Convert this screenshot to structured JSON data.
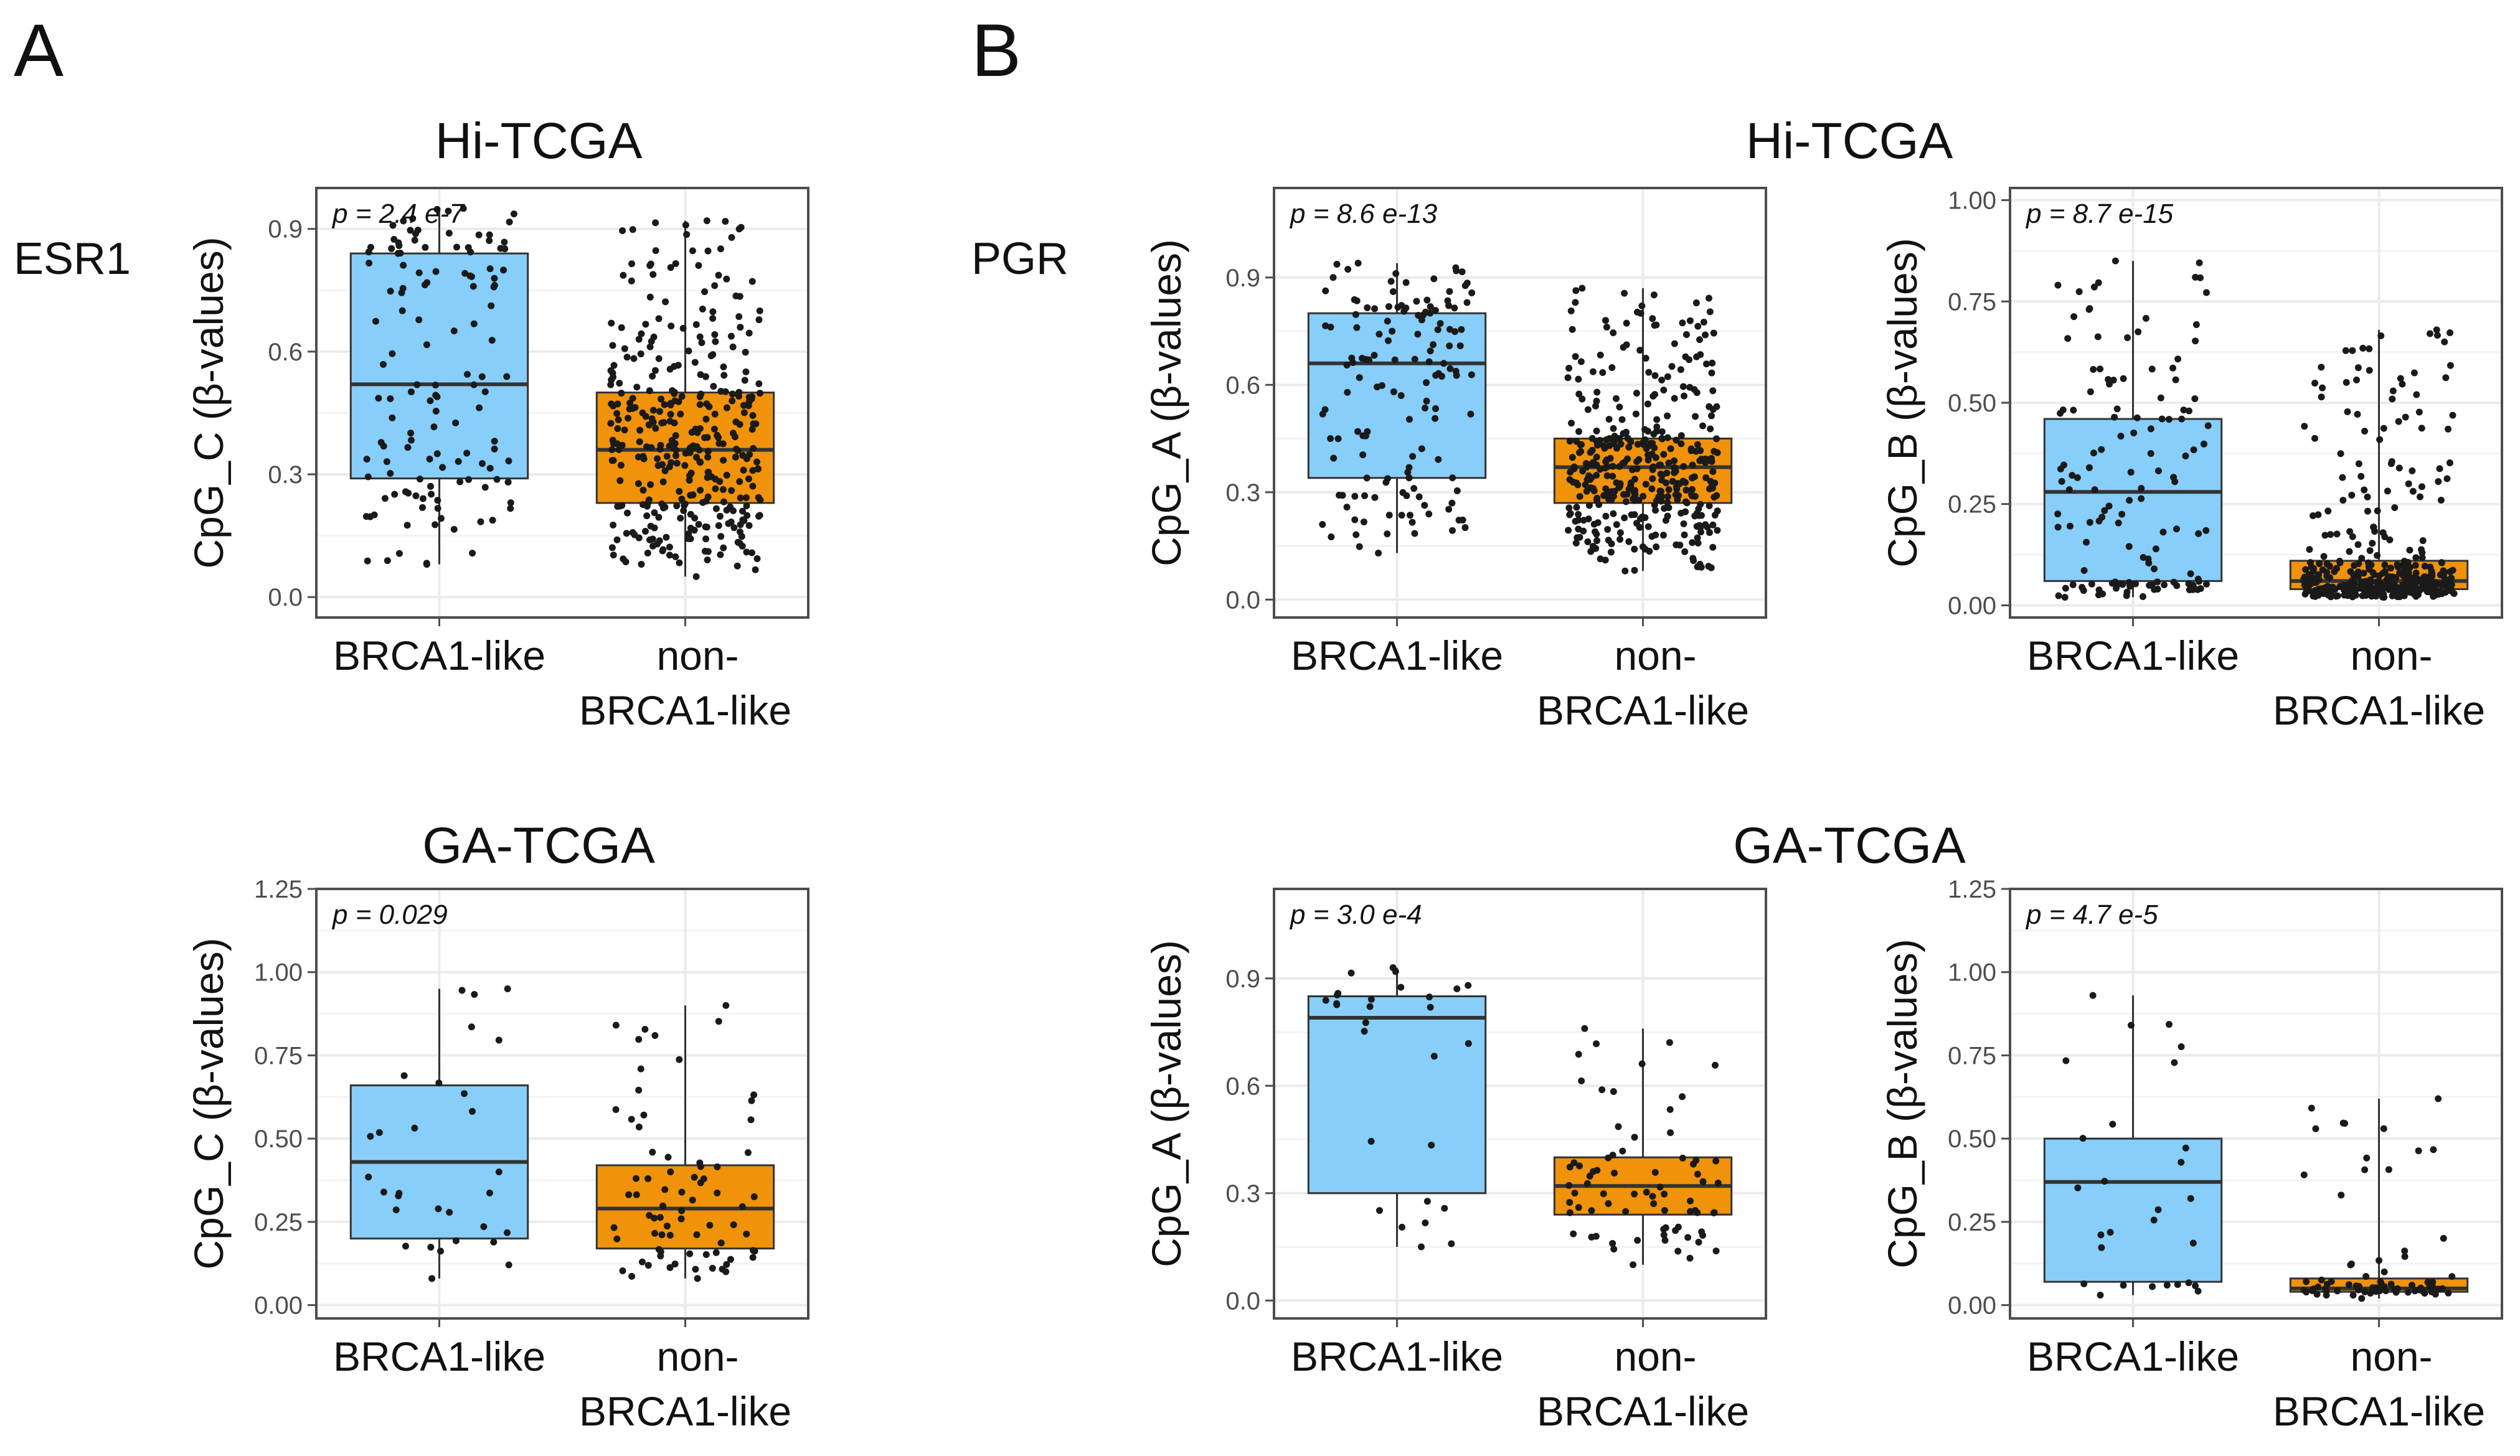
{
  "figure": {
    "panel_labels": [
      "A",
      "B"
    ],
    "gene_labels": [
      "ESR1",
      "PGR"
    ],
    "section_titles": [
      "Hi-TCGA",
      "GA-TCGA",
      "Hi-TCGA",
      "GA-TCGA"
    ]
  },
  "colors": {
    "brca1_like_fill": "#87CEFA",
    "non_brca1_like_fill": "#F0920A",
    "point": "#1a1a1a",
    "grid": "#ebebeb",
    "panel_border": "#4d4d4d"
  },
  "chart_data": [
    {
      "type": "box",
      "panel": "A",
      "gene": "ESR1",
      "cohort": "Hi-TCGA",
      "ylabel": "CpG_C (β-values)",
      "categories": [
        "BRCA1-like",
        "non-\nBRCA1-like"
      ],
      "ylim": [
        -0.05,
        1.0
      ],
      "yticks": [
        0.0,
        0.3,
        0.6,
        0.9
      ],
      "ytick_labels": [
        "0.0",
        "0.3",
        "0.6",
        "0.9"
      ],
      "p_value": "p = 2.4 e-7",
      "boxes": [
        {
          "q1": 0.29,
          "median": 0.52,
          "q3": 0.84,
          "whisker_low": 0.08,
          "whisker_high": 0.95,
          "n": 130
        },
        {
          "q1": 0.23,
          "median": 0.36,
          "q3": 0.5,
          "whisker_low": 0.05,
          "whisker_high": 0.92,
          "n": 360
        }
      ]
    },
    {
      "type": "box",
      "panel": "A",
      "gene": "ESR1",
      "cohort": "GA-TCGA",
      "ylabel": "CpG_C (β-values)",
      "categories": [
        "BRCA1-like",
        "non-\nBRCA1-like"
      ],
      "ylim": [
        -0.04,
        1.25
      ],
      "yticks": [
        0.0,
        0.25,
        0.5,
        0.75,
        1.0,
        1.25
      ],
      "ytick_labels": [
        "0.00",
        "0.25",
        "0.50",
        "0.75",
        "1.00",
        "1.25"
      ],
      "p_value": "p = 0.029",
      "boxes": [
        {
          "q1": 0.2,
          "median": 0.43,
          "q3": 0.66,
          "whisker_low": 0.08,
          "whisker_high": 0.95,
          "n": 30
        },
        {
          "q1": 0.17,
          "median": 0.29,
          "q3": 0.42,
          "whisker_low": 0.08,
          "whisker_high": 0.9,
          "n": 75
        }
      ]
    },
    {
      "type": "box",
      "panel": "B",
      "gene": "PGR",
      "cohort": "Hi-TCGA",
      "ylabel": "CpG_A (β-values)",
      "categories": [
        "BRCA1-like",
        "non-\nBRCA1-like"
      ],
      "ylim": [
        -0.05,
        1.15
      ],
      "yticks": [
        0.0,
        0.3,
        0.6,
        0.9
      ],
      "ytick_labels": [
        "0.0",
        "0.3",
        "0.6",
        "0.9"
      ],
      "p_value": "p = 8.6 e-13",
      "boxes": [
        {
          "q1": 0.34,
          "median": 0.66,
          "q3": 0.8,
          "whisker_low": 0.13,
          "whisker_high": 0.94,
          "n": 140
        },
        {
          "q1": 0.27,
          "median": 0.37,
          "q3": 0.45,
          "whisker_low": 0.08,
          "whisker_high": 0.87,
          "n": 400
        }
      ]
    },
    {
      "type": "box",
      "panel": "B",
      "gene": "PGR",
      "cohort": "Hi-TCGA",
      "ylabel": "CpG_B (β-values)",
      "categories": [
        "BRCA1-like",
        "non-\nBRCA1-like"
      ],
      "ylim": [
        -0.03,
        1.03
      ],
      "yticks": [
        0.0,
        0.25,
        0.5,
        0.75,
        1.0
      ],
      "ytick_labels": [
        "0.00",
        "0.25",
        "0.50",
        "0.75",
        "1.00"
      ],
      "p_value": "p = 8.7 e-15",
      "boxes": [
        {
          "q1": 0.06,
          "median": 0.28,
          "q3": 0.46,
          "whisker_low": 0.02,
          "whisker_high": 0.85,
          "n": 130
        },
        {
          "q1": 0.04,
          "median": 0.06,
          "q3": 0.11,
          "whisker_low": 0.02,
          "whisker_high": 0.68,
          "n": 380
        }
      ]
    },
    {
      "type": "box",
      "panel": "B",
      "gene": "PGR",
      "cohort": "GA-TCGA",
      "ylabel": "CpG_A (β-values)",
      "categories": [
        "BRCA1-like",
        "non-\nBRCA1-like"
      ],
      "ylim": [
        -0.05,
        1.15
      ],
      "yticks": [
        0.0,
        0.3,
        0.6,
        0.9
      ],
      "ytick_labels": [
        "0.0",
        "0.3",
        "0.6",
        "0.9"
      ],
      "p_value": "p = 3.0 e-4",
      "boxes": [
        {
          "q1": 0.3,
          "median": 0.79,
          "q3": 0.85,
          "whisker_low": 0.15,
          "whisker_high": 0.93,
          "n": 28
        },
        {
          "q1": 0.24,
          "median": 0.32,
          "q3": 0.4,
          "whisker_low": 0.1,
          "whisker_high": 0.76,
          "n": 75
        }
      ]
    },
    {
      "type": "box",
      "panel": "B",
      "gene": "PGR",
      "cohort": "GA-TCGA",
      "ylabel": "CpG_B (β-values)",
      "categories": [
        "BRCA1-like",
        "non-\nBRCA1-like"
      ],
      "ylim": [
        -0.04,
        1.25
      ],
      "yticks": [
        0.0,
        0.25,
        0.5,
        0.75,
        1.0,
        1.25
      ],
      "ytick_labels": [
        "0.00",
        "0.25",
        "0.50",
        "0.75",
        "1.00",
        "1.25"
      ],
      "p_value": "p = 4.7 e-5",
      "boxes": [
        {
          "q1": 0.07,
          "median": 0.37,
          "q3": 0.5,
          "whisker_low": 0.03,
          "whisker_high": 0.93,
          "n": 28
        },
        {
          "q1": 0.04,
          "median": 0.05,
          "q3": 0.08,
          "whisker_low": 0.02,
          "whisker_high": 0.62,
          "n": 75
        }
      ]
    }
  ]
}
